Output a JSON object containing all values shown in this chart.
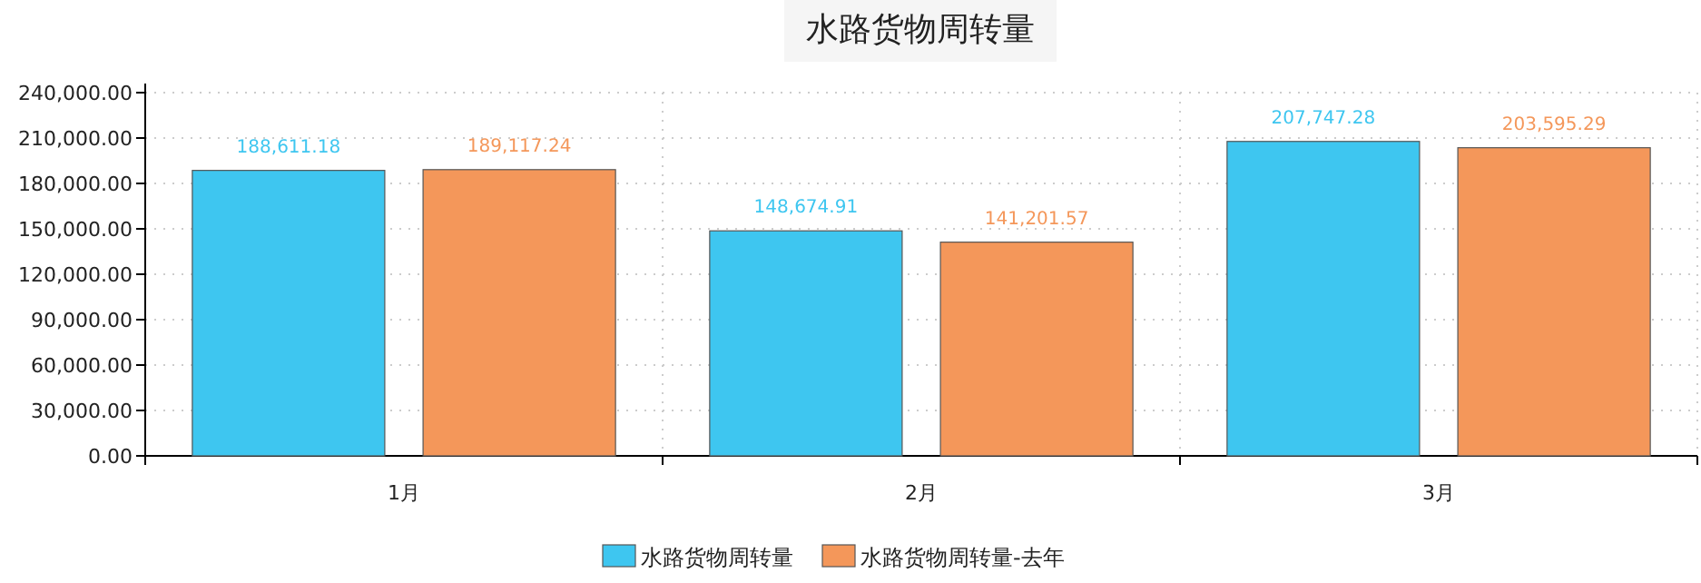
{
  "chart_data": {
    "type": "bar",
    "title": "水路货物周转量",
    "categories": [
      "1月",
      "2月",
      "3月"
    ],
    "series": [
      {
        "name": "水路货物周转量",
        "color": "#3ec6f0",
        "values": [
          188611.18,
          148674.91,
          207747.28
        ],
        "value_labels": [
          "188,611.18",
          "148,674.91",
          "207,747.28"
        ]
      },
      {
        "name": "水路货物周转量-去年",
        "color": "#f4975a",
        "values": [
          189117.24,
          141201.57,
          203595.29
        ],
        "value_labels": [
          "189,117.24",
          "141,201.57",
          "203,595.29"
        ]
      }
    ],
    "ylim": [
      0,
      240000
    ],
    "yticks": [
      {
        "value": 0,
        "label": "0.00"
      },
      {
        "value": 30000,
        "label": "30,000.00"
      },
      {
        "value": 60000,
        "label": "60,000.00"
      },
      {
        "value": 90000,
        "label": "90,000.00"
      },
      {
        "value": 120000,
        "label": "120,000.00"
      },
      {
        "value": 150000,
        "label": "150,000.00"
      },
      {
        "value": 180000,
        "label": "180,000.00"
      },
      {
        "value": 210000,
        "label": "210,000.00"
      },
      {
        "value": 240000,
        "label": "240,000.00"
      }
    ],
    "grid": true,
    "legend": "bottom"
  }
}
